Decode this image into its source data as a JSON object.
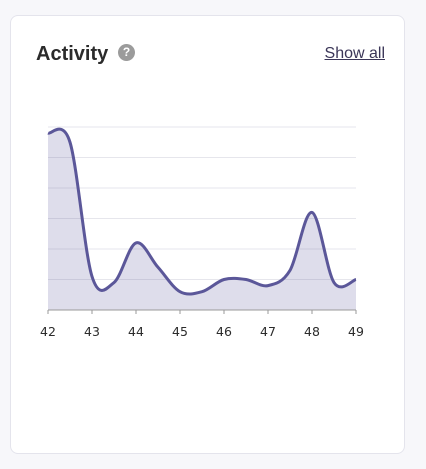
{
  "card": {
    "title": "Activity",
    "help_glyph": "?",
    "show_all_label": "Show all"
  },
  "colors": {
    "line": "#5b5799",
    "fill": "#5b5799",
    "grid": "#e6e6ec",
    "axis": "#999999"
  },
  "icons": {
    "help": "question-circle-icon"
  },
  "chart_data": {
    "type": "area",
    "categories": [
      "42",
      "43",
      "44",
      "45",
      "46",
      "47",
      "48",
      "49"
    ],
    "x": [
      42,
      42.5,
      43,
      43.5,
      44,
      44.5,
      45,
      45.5,
      46,
      46.5,
      47,
      47.5,
      48,
      48.5,
      49
    ],
    "values": [
      58,
      55,
      11,
      9,
      22,
      14,
      6,
      6,
      10,
      10,
      8,
      13,
      32,
      9,
      10
    ],
    "ylim": [
      0,
      60
    ],
    "grid": true,
    "title": "",
    "xlabel": "",
    "ylabel": ""
  }
}
